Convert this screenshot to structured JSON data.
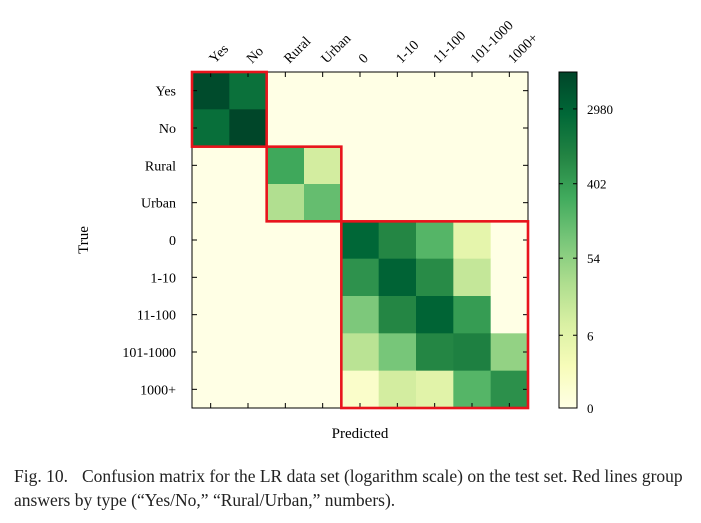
{
  "chart_data": {
    "type": "heatmap",
    "title": "",
    "xlabel": "Predicted",
    "ylabel": "True",
    "x_categories": [
      "Yes",
      "No",
      "Rural",
      "Urban",
      "0",
      "1-10",
      "11-100",
      "101-1000",
      "1000+"
    ],
    "y_categories": [
      "Yes",
      "No",
      "Rural",
      "Urban",
      "0",
      "1-10",
      "11-100",
      "101-1000",
      "1000+"
    ],
    "scale": "logarithmic",
    "colorbar": {
      "ticks": [
        "0",
        "6",
        "54",
        "402",
        "2980"
      ],
      "tick_values": [
        0,
        6,
        54,
        402,
        2980
      ],
      "max": 8000,
      "colors": [
        "#ffffe5",
        "#f7fcb9",
        "#d9f0a3",
        "#addd8e",
        "#78c679",
        "#41ab5d",
        "#238443",
        "#006837",
        "#004529"
      ]
    },
    "values": [
      [
        6500,
        1800,
        0,
        0,
        0,
        0,
        0,
        0,
        0
      ],
      [
        2000,
        7800,
        0,
        0,
        0,
        0,
        0,
        0,
        0
      ],
      [
        0,
        0,
        300,
        10,
        0,
        0,
        0,
        0,
        0
      ],
      [
        0,
        0,
        25,
        130,
        0,
        0,
        0,
        0,
        0
      ],
      [
        0,
        0,
        0,
        0,
        2700,
        800,
        180,
        5,
        0
      ],
      [
        0,
        0,
        0,
        0,
        560,
        3100,
        700,
        15,
        0
      ],
      [
        0,
        0,
        0,
        0,
        80,
        800,
        3000,
        420,
        0
      ],
      [
        0,
        0,
        0,
        0,
        20,
        90,
        800,
        1000,
        50
      ],
      [
        0,
        0,
        0,
        0,
        1,
        10,
        6,
        180,
        600
      ]
    ],
    "group_boxes": [
      {
        "label": "Yes/No",
        "start": 0,
        "end": 1,
        "color": "#e8141c"
      },
      {
        "label": "Rural/Urban",
        "start": 2,
        "end": 3,
        "color": "#e8141c"
      },
      {
        "label": "numbers",
        "start": 4,
        "end": 8,
        "color": "#e8141c"
      }
    ]
  },
  "caption": {
    "label": "Fig. 10.",
    "text": "Confusion matrix for the LR data set (logarithm scale) on the test set. Red lines group answers by type (“Yes/No,” “Rural/Urban,” numbers)."
  }
}
